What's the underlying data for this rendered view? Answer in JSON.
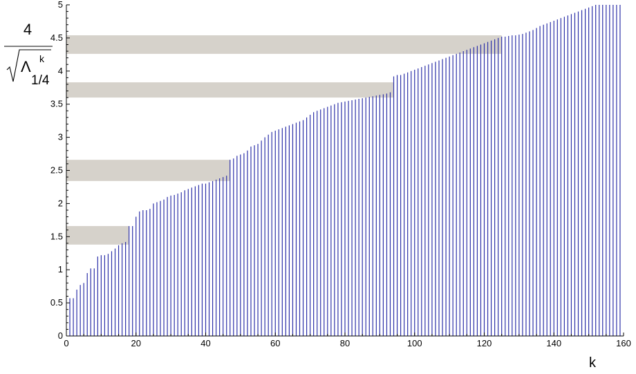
{
  "chart_data": {
    "type": "bar",
    "xlabel": "k",
    "ylabel": {
      "numerator": "4",
      "radicand_symbol": "Λ",
      "superscript": "k",
      "subscript": "1/4"
    },
    "xlim": [
      0,
      160
    ],
    "ylim": [
      0,
      5
    ],
    "xticks": [
      "0",
      "20",
      "40",
      "60",
      "80",
      "100",
      "120",
      "140",
      "160"
    ],
    "yticks": [
      "0",
      "0.5",
      "1",
      "1.5",
      "2",
      "2.5",
      "3",
      "3.5",
      "4",
      "4.5",
      "5"
    ],
    "grid": false,
    "bar_color": "#2b2fa8",
    "band_color": "#d6d2cb",
    "bands": [
      {
        "x_start": 0,
        "x_end": 18,
        "y_low": 1.38,
        "y_high": 1.66
      },
      {
        "x_start": 0,
        "x_end": 47,
        "y_low": 2.34,
        "y_high": 2.66
      },
      {
        "x_start": 0,
        "x_end": 94,
        "y_low": 3.6,
        "y_high": 3.83
      },
      {
        "x_start": 0,
        "x_end": 125,
        "y_low": 4.26,
        "y_high": 4.54
      }
    ],
    "x": [
      1,
      2,
      3,
      4,
      5,
      6,
      7,
      8,
      9,
      10,
      11,
      12,
      13,
      14,
      15,
      16,
      17,
      18,
      19,
      20,
      21,
      22,
      23,
      24,
      25,
      26,
      27,
      28,
      29,
      30,
      31,
      32,
      33,
      34,
      35,
      36,
      37,
      38,
      39,
      40,
      41,
      42,
      43,
      44,
      45,
      46,
      47,
      48,
      49,
      50,
      51,
      52,
      53,
      54,
      55,
      56,
      57,
      58,
      59,
      60,
      61,
      62,
      63,
      64,
      65,
      66,
      67,
      68,
      69,
      70,
      71,
      72,
      73,
      74,
      75,
      76,
      77,
      78,
      79,
      80,
      81,
      82,
      83,
      84,
      85,
      86,
      87,
      88,
      89,
      90,
      91,
      92,
      93,
      94,
      95,
      96,
      97,
      98,
      99,
      100,
      101,
      102,
      103,
      104,
      105,
      106,
      107,
      108,
      109,
      110,
      111,
      112,
      113,
      114,
      115,
      116,
      117,
      118,
      119,
      120,
      121,
      122,
      123,
      124,
      125,
      126,
      127,
      128,
      129,
      130,
      131,
      132,
      133,
      134,
      135,
      136,
      137,
      138,
      139,
      140,
      141,
      142,
      143,
      144,
      145,
      146,
      147,
      148,
      149,
      150,
      151,
      152,
      153,
      154,
      155,
      156,
      157,
      158,
      159
    ],
    "values": [
      0.57,
      0.57,
      0.7,
      0.77,
      0.8,
      0.95,
      1.02,
      1.02,
      1.2,
      1.22,
      1.22,
      1.24,
      1.28,
      1.32,
      1.37,
      1.4,
      1.42,
      1.66,
      1.66,
      1.8,
      1.88,
      1.9,
      1.9,
      1.92,
      2.0,
      2.02,
      2.04,
      2.06,
      2.1,
      2.12,
      2.13,
      2.15,
      2.17,
      2.2,
      2.22,
      2.24,
      2.26,
      2.28,
      2.3,
      2.3,
      2.32,
      2.34,
      2.36,
      2.38,
      2.4,
      2.42,
      2.66,
      2.68,
      2.72,
      2.74,
      2.76,
      2.8,
      2.86,
      2.88,
      2.9,
      2.95,
      3.0,
      3.04,
      3.08,
      3.1,
      3.12,
      3.14,
      3.16,
      3.18,
      3.2,
      3.22,
      3.24,
      3.26,
      3.3,
      3.34,
      3.38,
      3.4,
      3.42,
      3.44,
      3.46,
      3.48,
      3.5,
      3.52,
      3.53,
      3.54,
      3.55,
      3.56,
      3.57,
      3.58,
      3.59,
      3.6,
      3.61,
      3.62,
      3.63,
      3.64,
      3.65,
      3.66,
      3.68,
      3.92,
      3.94,
      3.94,
      3.96,
      3.98,
      4.0,
      4.02,
      4.04,
      4.06,
      4.08,
      4.1,
      4.12,
      4.14,
      4.16,
      4.18,
      4.2,
      4.22,
      4.24,
      4.26,
      4.28,
      4.3,
      4.32,
      4.34,
      4.36,
      4.38,
      4.4,
      4.42,
      4.44,
      4.46,
      4.48,
      4.5,
      4.52,
      4.52,
      4.53,
      4.54,
      4.54,
      4.55,
      4.56,
      4.58,
      4.6,
      4.62,
      4.65,
      4.68,
      4.7,
      4.72,
      4.74,
      4.76,
      4.78,
      4.8,
      4.82,
      4.84,
      4.86,
      4.88,
      4.9,
      4.92,
      4.94,
      4.96,
      4.98,
      5.0,
      5.0,
      5.0,
      5.0,
      5.0,
      5.0,
      5.0,
      5.0
    ]
  }
}
